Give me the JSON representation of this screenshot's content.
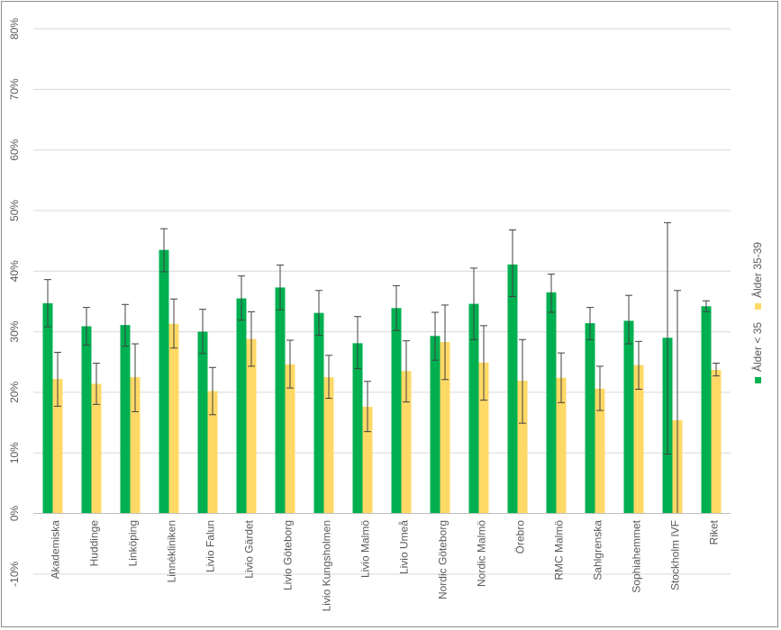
{
  "chart_data": {
    "type": "bar",
    "title": "",
    "xlabel": "",
    "ylabel": "",
    "ylim": [
      -0.1,
      0.8
    ],
    "yticks": [
      "-10%",
      "0%",
      "10%",
      "20%",
      "30%",
      "40%",
      "50%",
      "60%",
      "70%",
      "80%"
    ],
    "ytick_values": [
      -0.1,
      0,
      0.1,
      0.2,
      0.3,
      0.4,
      0.5,
      0.6,
      0.7,
      0.8
    ],
    "grid": true,
    "legend_position": "right",
    "categories": [
      "Akademiska",
      "Huddinge",
      "Linköping",
      "Linnékliniken",
      "Livio Falun",
      "Livio Gärdet",
      "Livio Göteborg",
      "Livio Kungsholmen",
      "Livio Malmö",
      "Livio Umeå",
      "Nordic Göteborg",
      "Nordic Malmö",
      "Örebro",
      "RMC Malmö",
      "Sahlgrenska",
      "Sophiahemmet",
      "Stockholm IVF",
      "Riket"
    ],
    "series": [
      {
        "name": "Ålder < 35",
        "color": "#00b050",
        "values": [
          0.347,
          0.309,
          0.311,
          0.435,
          0.3,
          0.355,
          0.373,
          0.331,
          0.281,
          0.339,
          0.293,
          0.346,
          0.411,
          0.365,
          0.314,
          0.318,
          0.29,
          0.342
        ],
        "error_low": [
          0.308,
          0.278,
          0.276,
          0.399,
          0.264,
          0.319,
          0.336,
          0.294,
          0.239,
          0.302,
          0.253,
          0.287,
          0.358,
          0.332,
          0.287,
          0.28,
          0.098,
          0.333
        ],
        "error_high": [
          0.386,
          0.34,
          0.345,
          0.47,
          0.337,
          0.392,
          0.41,
          0.368,
          0.325,
          0.376,
          0.332,
          0.405,
          0.468,
          0.395,
          0.34,
          0.36,
          0.48,
          0.351
        ]
      },
      {
        "name": "Ålder 35-39",
        "color": "#ffd966",
        "values": [
          0.222,
          0.214,
          0.225,
          0.313,
          0.202,
          0.288,
          0.246,
          0.225,
          0.176,
          0.235,
          0.283,
          0.249,
          0.219,
          0.224,
          0.206,
          0.245,
          0.154,
          0.237
        ],
        "error_low": [
          0.177,
          0.18,
          0.168,
          0.273,
          0.163,
          0.243,
          0.207,
          0.19,
          0.135,
          0.184,
          0.221,
          0.187,
          0.149,
          0.183,
          0.17,
          0.205,
          0.0,
          0.227
        ],
        "error_high": [
          0.266,
          0.248,
          0.28,
          0.354,
          0.241,
          0.333,
          0.286,
          0.261,
          0.218,
          0.285,
          0.344,
          0.31,
          0.287,
          0.265,
          0.243,
          0.284,
          0.368,
          0.248
        ]
      }
    ]
  }
}
